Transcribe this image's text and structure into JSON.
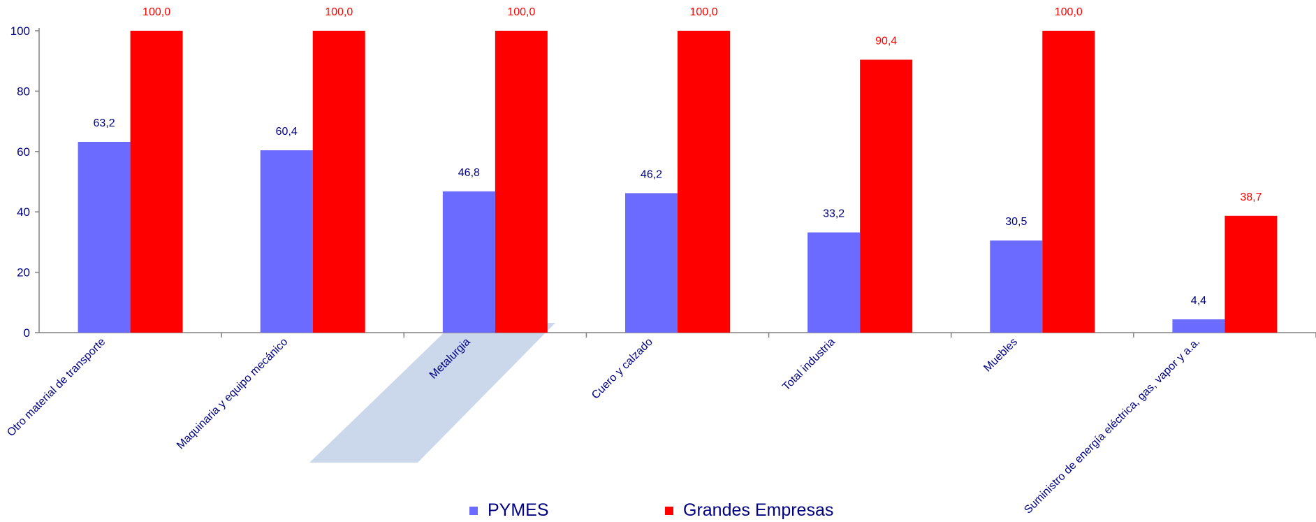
{
  "chart_data": {
    "type": "bar",
    "categories": [
      "Otro material de transporte",
      "Maquinaria y equipo mecánico",
      "Metalurgia",
      "Cuero y calzado",
      "Total industria",
      "Muebles",
      "Suministro de energía eléctrica, gas, vapor y a.a."
    ],
    "series": [
      {
        "name": "PYMES",
        "color": "#6b6bff",
        "values": [
          63.2,
          60.4,
          46.8,
          46.2,
          33.2,
          30.5,
          4.4
        ],
        "labels": [
          "63,2",
          "60,4",
          "46,8",
          "46,2",
          "33,2",
          "30,5",
          "4,4"
        ],
        "label_color": "#000080"
      },
      {
        "name": "Grandes Empresas",
        "color": "#ff0000",
        "values": [
          100.0,
          100.0,
          100.0,
          100.0,
          90.4,
          100.0,
          38.7
        ],
        "labels": [
          "100,0",
          "100,0",
          "100,0",
          "100,0",
          "90,4",
          "100,0",
          "38,7"
        ],
        "label_color": "#ff0000"
      }
    ],
    "yticks": [
      "0",
      "20",
      "40",
      "60",
      "80",
      "100"
    ],
    "ylim": [
      0,
      100
    ],
    "grid": false,
    "legend_position": "bottom"
  }
}
